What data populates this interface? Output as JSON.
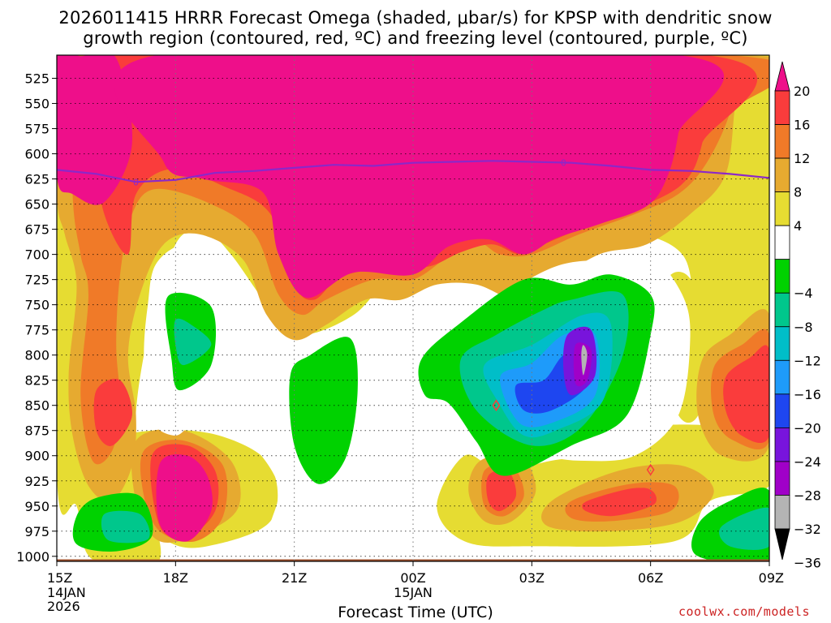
{
  "title_line1": "2026011415 HRRR Forecast Omega (shaded, μbar/s) for KPSP with dendritic snow",
  "title_line2": "growth region (contoured, red, ºC) and freezing level (contoured, purple, ºC)",
  "xlabel": "Forecast Time (UTC)",
  "credit": "coolwx.com/models",
  "chart_data": {
    "type": "heatmap",
    "title": "2026011415 HRRR Forecast Omega (shaded, μbar/s) for KPSP with dendritic snow growth region (contoured, red, ºC) and freezing level (contoured, purple, ºC)",
    "xlabel": "Forecast Time (UTC)",
    "ylabel": "",
    "x_ticks": [
      {
        "hour": 0,
        "label": "15Z",
        "sub": [
          "14JAN",
          "2026"
        ]
      },
      {
        "hour": 3,
        "label": "18Z",
        "sub": []
      },
      {
        "hour": 6,
        "label": "21Z",
        "sub": []
      },
      {
        "hour": 9,
        "label": "00Z",
        "sub": [
          "15JAN"
        ]
      },
      {
        "hour": 12,
        "label": "03Z",
        "sub": []
      },
      {
        "hour": 15,
        "label": "06Z",
        "sub": []
      },
      {
        "hour": 18,
        "label": "09Z",
        "sub": []
      }
    ],
    "xlim_hours": [
      0,
      18
    ],
    "y_ticks": [
      525,
      550,
      575,
      600,
      625,
      650,
      675,
      700,
      725,
      750,
      775,
      800,
      825,
      850,
      875,
      900,
      925,
      950,
      975,
      1000
    ],
    "ylim_hpa": [
      502,
      1005
    ],
    "y_reversed": true,
    "grid": "dotted",
    "colorbar": {
      "labels": [
        "20",
        "16",
        "12",
        "8",
        "4",
        "−4",
        "−8",
        "−12",
        "−16",
        "−20",
        "−24",
        "−28",
        "−32",
        "−36"
      ],
      "bins": [
        {
          "range": ">20",
          "color": "#ee0f8a"
        },
        {
          "range": "16 to 20",
          "color": "#fa3c3c"
        },
        {
          "range": "12 to 16",
          "color": "#f07a28"
        },
        {
          "range": "8 to 12",
          "color": "#e6aa30"
        },
        {
          "range": "4 to 8",
          "color": "#e6dc32"
        },
        {
          "range": "-4 to 4",
          "color": "#ffffff"
        },
        {
          "range": "-8 to -4",
          "color": "#00d200"
        },
        {
          "range": "-12 to -8",
          "color": "#00c78c"
        },
        {
          "range": "-16 to -12",
          "color": "#00bec8"
        },
        {
          "range": "-20 to -16",
          "color": "#1e9bfa"
        },
        {
          "range": "-24 to -20",
          "color": "#1e46f0"
        },
        {
          "range": "-28 to -24",
          "color": "#7814dc"
        },
        {
          "range": "-32 to -28",
          "color": "#a000c8"
        },
        {
          "range": "-36 to -32",
          "color": "#b4b4b4"
        },
        {
          "range": "<-36",
          "color": "#000000"
        }
      ]
    },
    "freezing_level": {
      "color": "#8c28c8",
      "label": "0",
      "label_hours": [
        2,
        12.8
      ],
      "hours": [
        0,
        1,
        2,
        3,
        4,
        5,
        6,
        7,
        8,
        9,
        10,
        11,
        12,
        13,
        14,
        15,
        16,
        17,
        18
      ],
      "hpa": [
        616,
        620,
        628,
        626,
        619,
        617,
        614,
        611,
        612,
        609,
        608,
        607,
        608,
        609,
        612,
        616,
        617,
        620,
        624
      ]
    },
    "dgz_contours": {
      "color": "#fa3c3c",
      "points": [
        {
          "hour": 11.1,
          "hpa": 850
        },
        {
          "hour": 15.0,
          "hpa": 914
        }
      ]
    },
    "omega_regions": [
      {
        "level": ">20",
        "pts": [
          [
            0.0,
            503
          ],
          [
            0.6,
            503
          ],
          [
            1.5,
            505
          ],
          [
            1.9,
            590
          ],
          [
            1.2,
            648
          ],
          [
            0.4,
            640
          ],
          [
            0.0,
            622
          ]
        ]
      },
      {
        "level": ">20",
        "pts": [
          [
            2.4,
            503
          ],
          [
            15.9,
            503
          ],
          [
            15.7,
            580
          ],
          [
            15.4,
            625
          ],
          [
            14.9,
            652
          ],
          [
            13.7,
            670
          ],
          [
            12.6,
            684
          ],
          [
            11.8,
            700
          ],
          [
            10.9,
            685
          ],
          [
            9.9,
            692
          ],
          [
            9.0,
            720
          ],
          [
            7.5,
            718
          ],
          [
            6.3,
            743
          ],
          [
            5.6,
            700
          ],
          [
            5.2,
            638
          ],
          [
            3.7,
            625
          ],
          [
            2.7,
            608
          ]
        ]
      },
      {
        "level": ">20",
        "pts": [
          [
            2.6,
            908
          ],
          [
            3.3,
            900
          ],
          [
            3.8,
            920
          ],
          [
            3.9,
            955
          ],
          [
            3.3,
            985
          ],
          [
            2.6,
            968
          ]
        ]
      },
      {
        "level": "16 to 20",
        "pts": [
          [
            1.0,
            835
          ],
          [
            1.6,
            825
          ],
          [
            1.9,
            860
          ],
          [
            1.4,
            890
          ],
          [
            1.0,
            875
          ]
        ]
      },
      {
        "level": "16 to 20",
        "pts": [
          [
            16.9,
            822
          ],
          [
            17.5,
            803
          ],
          [
            18.0,
            795
          ],
          [
            18.0,
            880
          ],
          [
            17.3,
            880
          ],
          [
            16.9,
            855
          ]
        ]
      },
      {
        "level": "16 to 20",
        "pts": [
          [
            13.3,
            950
          ],
          [
            14.8,
            932
          ],
          [
            15.1,
            948
          ],
          [
            14.0,
            960
          ]
        ]
      }
    ],
    "negative_regions": [
      {
        "level": "-8 to -4",
        "pts": [
          [
            2.8,
            742
          ],
          [
            3.9,
            752
          ],
          [
            3.9,
            810
          ],
          [
            3.1,
            835
          ],
          [
            2.9,
            805
          ]
        ]
      },
      {
        "level": "-8 to -4",
        "pts": [
          [
            5.9,
            820
          ],
          [
            6.4,
            800
          ],
          [
            7.4,
            783
          ],
          [
            7.6,
            835
          ],
          [
            7.3,
            902
          ],
          [
            6.6,
            928
          ],
          [
            6.0,
            890
          ]
        ]
      },
      {
        "level": "-8 to -4",
        "pts": [
          [
            9.2,
            805
          ],
          [
            10.2,
            768
          ],
          [
            11.8,
            725
          ],
          [
            13.0,
            730
          ],
          [
            14.0,
            720
          ],
          [
            15.0,
            740
          ],
          [
            15.0,
            780
          ],
          [
            14.4,
            860
          ],
          [
            13.0,
            890
          ],
          [
            11.3,
            920
          ],
          [
            10.6,
            886
          ],
          [
            9.9,
            848
          ],
          [
            9.3,
            840
          ]
        ]
      },
      {
        "level": "-8 to -4",
        "pts": [
          [
            0.5,
            960
          ],
          [
            1.0,
            942
          ],
          [
            2.1,
            940
          ],
          [
            2.4,
            980
          ],
          [
            1.5,
            995
          ],
          [
            0.5,
            988
          ]
        ]
      },
      {
        "level": "-8 to -4",
        "pts": [
          [
            16.2,
            968
          ],
          [
            17.0,
            945
          ],
          [
            18.0,
            935
          ],
          [
            18.0,
            1003
          ],
          [
            16.2,
            1000
          ]
        ]
      },
      {
        "level": "-12 to -8",
        "pts": [
          [
            3.0,
            765
          ],
          [
            3.4,
            770
          ],
          [
            3.9,
            790
          ],
          [
            3.2,
            810
          ],
          [
            3.0,
            790
          ]
        ]
      },
      {
        "level": "-12 to -8",
        "pts": [
          [
            10.2,
            805
          ],
          [
            11.1,
            780
          ],
          [
            12.3,
            755
          ],
          [
            13.0,
            745
          ],
          [
            14.3,
            740
          ],
          [
            14.3,
            800
          ],
          [
            13.3,
            870
          ],
          [
            12.0,
            890
          ],
          [
            10.6,
            855
          ]
        ]
      },
      {
        "level": "-12 to -8",
        "pts": [
          [
            1.2,
            958
          ],
          [
            2.1,
            958
          ],
          [
            2.3,
            983
          ],
          [
            1.3,
            984
          ]
        ]
      },
      {
        "level": "-12 to -8",
        "pts": [
          [
            16.8,
            970
          ],
          [
            18.0,
            952
          ],
          [
            18.0,
            990
          ],
          [
            17.0,
            990
          ]
        ]
      },
      {
        "level": "-16 to -12",
        "pts": [
          [
            10.8,
            810
          ],
          [
            12.0,
            790
          ],
          [
            13.3,
            760
          ],
          [
            14.0,
            770
          ],
          [
            13.8,
            845
          ],
          [
            12.6,
            875
          ],
          [
            11.8,
            880
          ],
          [
            11.2,
            850
          ]
        ]
      },
      {
        "level": "-20 to -16",
        "pts": [
          [
            11.2,
            822
          ],
          [
            12.0,
            808
          ],
          [
            12.8,
            780
          ],
          [
            13.6,
            780
          ],
          [
            13.6,
            840
          ],
          [
            12.6,
            866
          ],
          [
            11.7,
            868
          ]
        ]
      },
      {
        "level": "-24 to -20",
        "pts": [
          [
            11.6,
            830
          ],
          [
            12.3,
            825
          ],
          [
            12.8,
            800
          ],
          [
            13.4,
            795
          ],
          [
            13.4,
            830
          ],
          [
            12.5,
            855
          ],
          [
            11.8,
            855
          ]
        ]
      },
      {
        "level": "-28 to -24",
        "pts": [
          [
            12.9,
            780
          ],
          [
            13.5,
            775
          ],
          [
            13.6,
            820
          ],
          [
            13.0,
            840
          ],
          [
            12.8,
            815
          ]
        ]
      },
      {
        "level": "-32 to -28",
        "pts": [
          [
            13.1,
            790
          ],
          [
            13.5,
            795
          ],
          [
            13.4,
            825
          ],
          [
            13.1,
            828
          ]
        ]
      },
      {
        "level": "-36 to -32",
        "pts": [
          [
            13.3,
            790
          ],
          [
            13.4,
            800
          ],
          [
            13.3,
            820
          ],
          [
            13.25,
            800
          ]
        ]
      }
    ]
  }
}
